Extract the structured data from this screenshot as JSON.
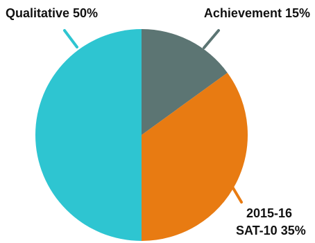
{
  "chart_data": {
    "type": "pie",
    "slices": [
      {
        "label": "Achievement",
        "value": 15,
        "label_text": "Achievement 15%",
        "color": "#5c7573"
      },
      {
        "label": "2015-16 SAT-10",
        "value": 35,
        "label_lines": [
          "2015-16",
          "SAT-10 35%"
        ],
        "color": "#e87b12"
      },
      {
        "label": "Qualitative",
        "value": 50,
        "label_text": "Qualitative 50%",
        "color": "#2ec5d1"
      }
    ],
    "start": "12 o'clock",
    "direction": "clockwise"
  }
}
